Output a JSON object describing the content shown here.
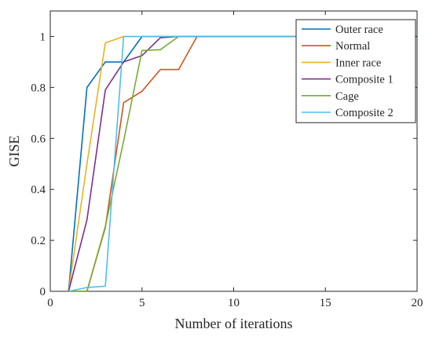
{
  "chart_data": {
    "type": "line",
    "xlabel": "Number of iterations",
    "ylabel": "GISE",
    "xlim": [
      0,
      20
    ],
    "ylim": [
      0,
      1.1
    ],
    "xticks": [
      0,
      5,
      10,
      15,
      20
    ],
    "yticks": [
      0,
      0.2,
      0.4,
      0.6,
      0.8,
      1
    ],
    "xtick_labels": [
      "0",
      "5",
      "10",
      "15",
      "20"
    ],
    "ytick_labels": [
      "0",
      "0.2",
      "0.4",
      "0.6",
      "0.8",
      "1"
    ],
    "grid": false,
    "legend_position": "top-right",
    "series": [
      {
        "name": "Outer race",
        "color": "#0072BD",
        "x": [
          1,
          2,
          3,
          4,
          5,
          20
        ],
        "y": [
          0,
          0.8,
          0.9,
          0.9,
          1,
          1
        ]
      },
      {
        "name": "Normal",
        "color": "#D95319",
        "x": [
          1,
          2,
          3,
          4,
          5,
          6,
          7,
          8,
          20
        ],
        "y": [
          0,
          0,
          0.25,
          0.74,
          0.785,
          0.87,
          0.87,
          1,
          1
        ]
      },
      {
        "name": "Inner race",
        "color": "#EDB120",
        "x": [
          1,
          2,
          3,
          4,
          20
        ],
        "y": [
          0,
          0.5,
          0.975,
          1,
          1
        ]
      },
      {
        "name": "Composite 1",
        "color": "#7E2F8E",
        "x": [
          1,
          2,
          3,
          4,
          5,
          6,
          7,
          20
        ],
        "y": [
          0,
          0.28,
          0.79,
          0.9,
          0.925,
          0.995,
          1,
          1
        ]
      },
      {
        "name": "Cage",
        "color": "#77AC30",
        "x": [
          1,
          2,
          3,
          4,
          5,
          6,
          7,
          20
        ],
        "y": [
          0,
          0,
          0.255,
          0.59,
          0.945,
          0.948,
          1,
          1
        ]
      },
      {
        "name": "Composite 2",
        "color": "#4DBEEE",
        "x": [
          1,
          2,
          3,
          4,
          20
        ],
        "y": [
          0,
          0.015,
          0.02,
          1,
          1
        ]
      }
    ]
  }
}
